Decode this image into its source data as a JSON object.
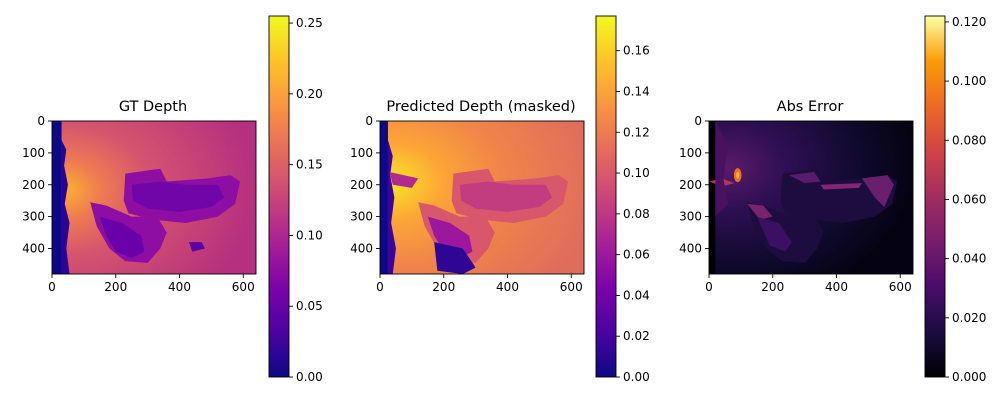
{
  "chart_data": [
    {
      "type": "heatmap",
      "title": "GT Depth",
      "colormap": "plasma",
      "image_size": {
        "width": 640,
        "height": 480
      },
      "x_ticks": [
        0,
        200,
        400,
        600
      ],
      "y_ticks": [
        0,
        100,
        200,
        300,
        400
      ],
      "colorbar": {
        "min": 0.0,
        "max": 0.255,
        "ticks": [
          "0.00",
          "0.05",
          "0.10",
          "0.15",
          "0.20",
          "0.25"
        ]
      },
      "grid": false
    },
    {
      "type": "heatmap",
      "title": "Predicted Depth (masked)",
      "colormap": "plasma",
      "image_size": {
        "width": 640,
        "height": 480
      },
      "x_ticks": [
        0,
        200,
        400,
        600
      ],
      "y_ticks": [
        0,
        100,
        200,
        300,
        400
      ],
      "colorbar": {
        "min": 0.0,
        "max": 0.177,
        "ticks": [
          "0.00",
          "0.02",
          "0.04",
          "0.06",
          "0.08",
          "0.10",
          "0.12",
          "0.14",
          "0.16"
        ]
      },
      "grid": false
    },
    {
      "type": "heatmap",
      "title": "Abs Error",
      "colormap": "inferno",
      "image_size": {
        "width": 640,
        "height": 480
      },
      "x_ticks": [
        0,
        200,
        400,
        600
      ],
      "y_ticks": [
        0,
        100,
        200,
        300,
        400
      ],
      "colorbar": {
        "min": 0.0,
        "max": 0.122,
        "ticks": [
          "0.000",
          "0.020",
          "0.040",
          "0.060",
          "0.080",
          "0.100",
          "0.120"
        ]
      },
      "grid": false
    }
  ]
}
